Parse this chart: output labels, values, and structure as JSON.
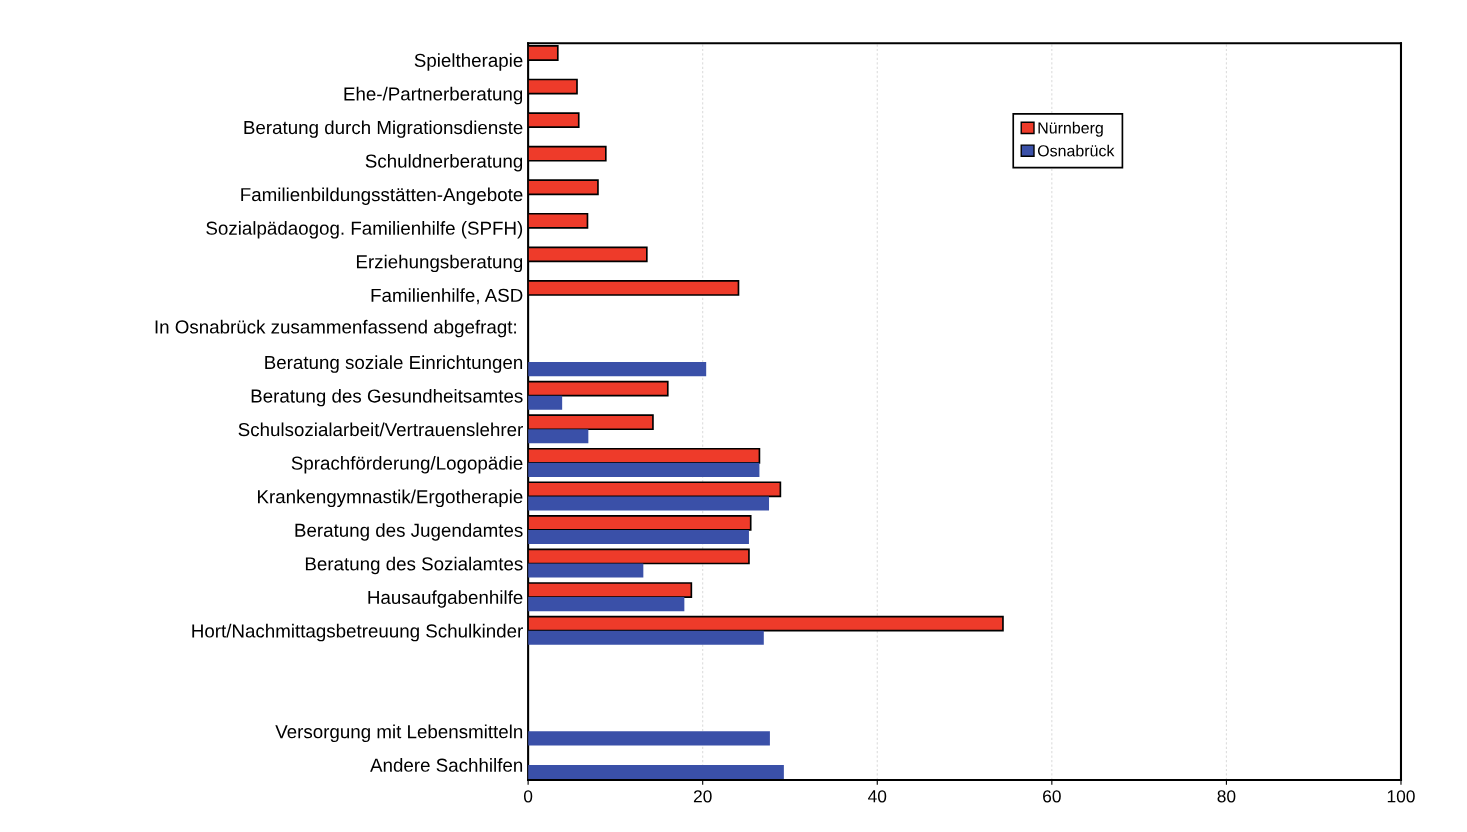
{
  "chart_data": {
    "type": "bar",
    "orientation": "horizontal",
    "categories": [
      "Spieltherapie",
      "Ehe-/Partnerberatung",
      "Beratung durch Migrationsdienste",
      "Schuldnerberatung",
      "Familienbildungsstätten-Angebote",
      "Sozialpädaogog. Familienhilfe (SPFH)",
      "Erziehungsberatung",
      "Familienhilfe, ASD",
      null,
      "Beratung soziale Einrichtungen",
      "Beratung des Gesundheitsamtes",
      "Schulsozialarbeit/Vertrauenslehrer",
      "Sprachförderung/Logopädie",
      "Krankengymnastik/Ergotherapie",
      "Beratung des Jugendamtes",
      "Beratung des Sozialamtes",
      "Hausaufgabenhilfe",
      "Hort/Nachmittagsbetreuung Schulkinder",
      null,
      null,
      "Versorgung mit Lebensmitteln",
      "Andere Sachhilfen"
    ],
    "series": [
      {
        "name": "Nürnberg",
        "color": "#ee3b2a",
        "values": [
          3.4,
          5.6,
          5.8,
          8.9,
          8.0,
          6.8,
          13.6,
          24.1,
          null,
          null,
          16.0,
          14.3,
          26.5,
          28.9,
          25.5,
          25.3,
          18.7,
          54.4,
          null,
          null,
          null,
          null
        ]
      },
      {
        "name": "Osnabrück",
        "color": "#3a50a8",
        "values": [
          null,
          null,
          null,
          null,
          null,
          null,
          null,
          null,
          null,
          20.4,
          3.9,
          6.9,
          26.5,
          27.6,
          25.3,
          13.2,
          17.9,
          27.0,
          null,
          null,
          27.7,
          29.3
        ]
      }
    ],
    "annotations": [
      "In Osnabrück zusammenfassend abgefragt:"
    ],
    "xlim": [
      0,
      100
    ],
    "xticks": [
      0,
      20,
      40,
      60,
      80,
      100
    ],
    "grid": "x",
    "legend": "top right"
  }
}
